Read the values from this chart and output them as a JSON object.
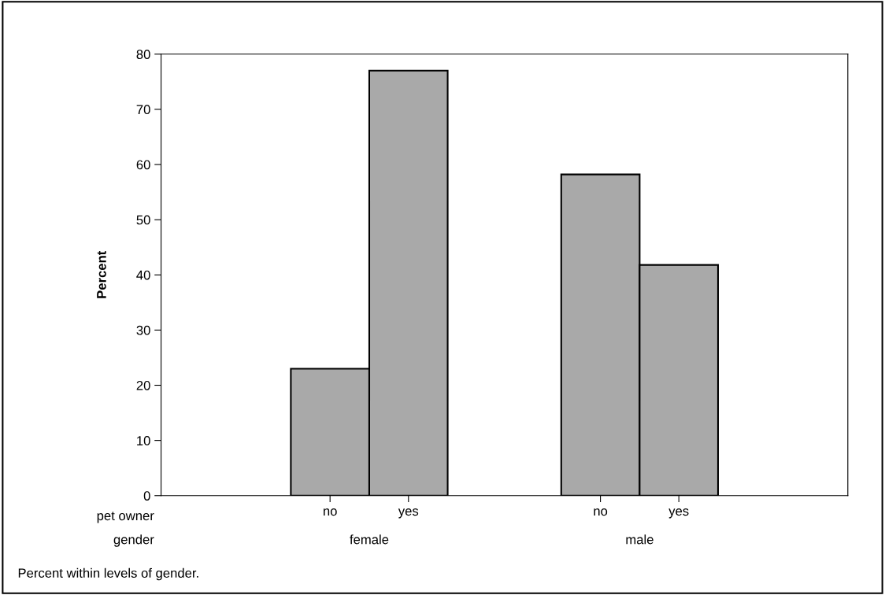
{
  "chart_data": {
    "type": "bar",
    "ylabel": "Percent",
    "categories": [
      "female",
      "male"
    ],
    "series": [
      {
        "name": "no",
        "color": "#a9a9a9",
        "values": [
          23,
          58.2
        ]
      },
      {
        "name": "yes",
        "color": "#a9a9a9",
        "values": [
          77,
          41.8
        ]
      }
    ],
    "ylim": [
      0,
      80
    ],
    "yticks": [
      0,
      10,
      20,
      30,
      40,
      50,
      60,
      70,
      80
    ],
    "grid": false,
    "legend": "bottom",
    "annotations": [
      "pet owner",
      "gender",
      "Percent within levels of gender."
    ]
  }
}
